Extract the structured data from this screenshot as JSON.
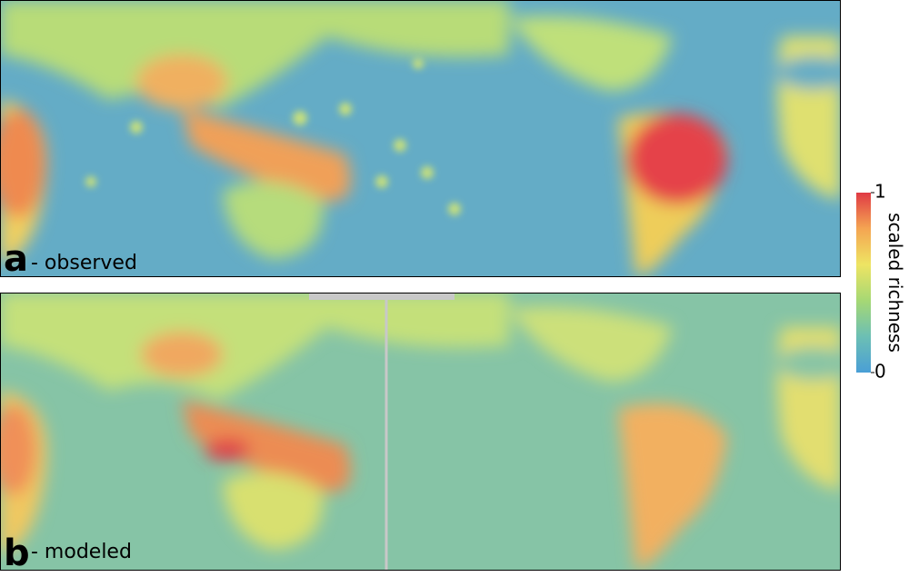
{
  "panels": [
    {
      "letter": "a",
      "label": "- observed"
    },
    {
      "letter": "b",
      "label": "- modeled"
    }
  ],
  "colorbar": {
    "label": "scaled richness",
    "lim": [
      0,
      1
    ],
    "ticks": [
      0,
      1
    ],
    "colors": [
      "#4a9fd6",
      "#6cbfb4",
      "#a6d874",
      "#eee463",
      "#f4a552",
      "#e03a44"
    ]
  }
}
